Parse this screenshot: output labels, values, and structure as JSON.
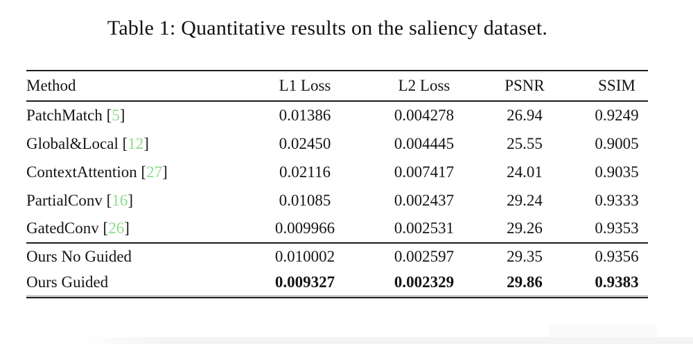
{
  "caption": "Table 1: Quantitative results on the saliency dataset.",
  "colors": {
    "citation_green": "#8cdc8c",
    "rule_dark": "#1c1c1c",
    "text": "#141414"
  },
  "table": {
    "columns": [
      "Method",
      "L1 Loss",
      "L2 Loss",
      "PSNR",
      "SSIM"
    ],
    "rows": [
      {
        "method": "PatchMatch",
        "ref": "5",
        "l1": "0.01386",
        "l2": "0.004278",
        "psnr": "26.94",
        "ssim": "0.9249"
      },
      {
        "method": "Global&Local",
        "ref": "12",
        "l1": "0.02450",
        "l2": "0.004445",
        "psnr": "25.55",
        "ssim": "0.9005"
      },
      {
        "method": "ContextAttention",
        "ref": "27",
        "l1": "0.02116",
        "l2": "0.007417",
        "psnr": "24.01",
        "ssim": "0.9035"
      },
      {
        "method": "PartialConv",
        "ref": "16",
        "l1": "0.01085",
        "l2": "0.002437",
        "psnr": "29.24",
        "ssim": "0.9333"
      },
      {
        "method": "GatedConv",
        "ref": "26",
        "l1": "0.009966",
        "l2": "0.002531",
        "psnr": "29.26",
        "ssim": "0.9353"
      },
      {
        "method": "Ours No Guided",
        "l1": "0.010002",
        "l2": "0.002597",
        "psnr": "29.35",
        "ssim": "0.9356"
      },
      {
        "method": "Ours Guided",
        "l1": "0.009327",
        "l2": "0.002329",
        "psnr": "29.86",
        "ssim": "0.9383"
      }
    ]
  }
}
